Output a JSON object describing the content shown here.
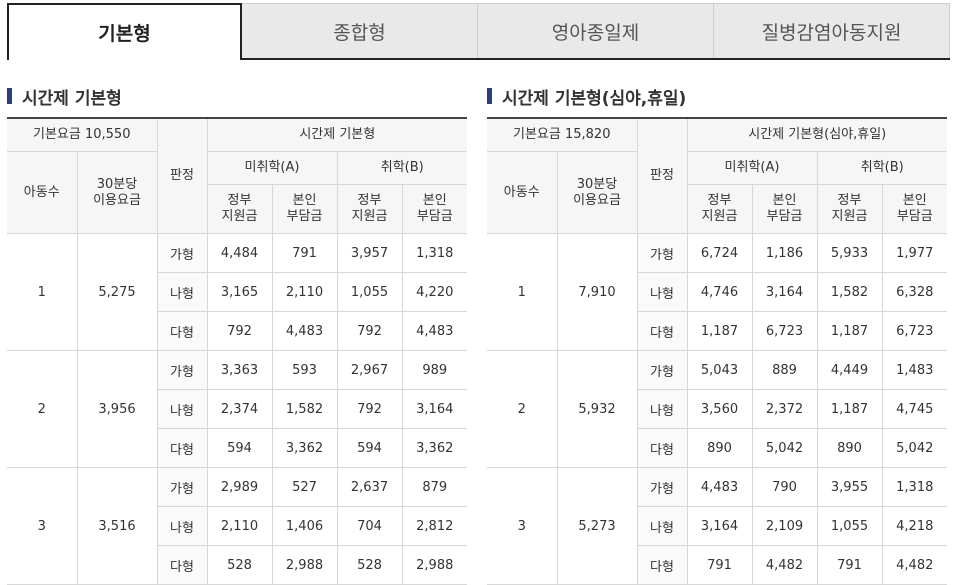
{
  "tabs": [
    "기본형",
    "종합형",
    "영아종일제",
    "질병감염아동지원"
  ],
  "active_tab": "기본형",
  "tables": [
    {
      "title": "시간제 기본형",
      "base_fee_label": "기본요금 10,550",
      "child_count_header": "아동수",
      "fee30_header": "30분당\n이용요금",
      "judge_header": "판정",
      "group_header": "시간제 기본형",
      "sub_a": "미취학(A)",
      "sub_b": "취학(B)",
      "gov_header": "정부\n지원금",
      "self_header": "본인\n부담금",
      "groups": [
        {
          "children": "1",
          "fee30": "5,275",
          "rows": [
            {
              "judge": "가형",
              "a_gov": "4,484",
              "a_self": "791",
              "b_gov": "3,957",
              "b_self": "1,318"
            },
            {
              "judge": "나형",
              "a_gov": "3,165",
              "a_self": "2,110",
              "b_gov": "1,055",
              "b_self": "4,220"
            },
            {
              "judge": "다형",
              "a_gov": "792",
              "a_self": "4,483",
              "b_gov": "792",
              "b_self": "4,483"
            }
          ]
        },
        {
          "children": "2",
          "fee30": "3,956",
          "rows": [
            {
              "judge": "가형",
              "a_gov": "3,363",
              "a_self": "593",
              "b_gov": "2,967",
              "b_self": "989"
            },
            {
              "judge": "나형",
              "a_gov": "2,374",
              "a_self": "1,582",
              "b_gov": "792",
              "b_self": "3,164"
            },
            {
              "judge": "다형",
              "a_gov": "594",
              "a_self": "3,362",
              "b_gov": "594",
              "b_self": "3,362"
            }
          ]
        },
        {
          "children": "3",
          "fee30": "3,516",
          "rows": [
            {
              "judge": "가형",
              "a_gov": "2,989",
              "a_self": "527",
              "b_gov": "2,637",
              "b_self": "879"
            },
            {
              "judge": "나형",
              "a_gov": "2,110",
              "a_self": "1,406",
              "b_gov": "704",
              "b_self": "2,812"
            },
            {
              "judge": "다형",
              "a_gov": "528",
              "a_self": "2,988",
              "b_gov": "528",
              "b_self": "2,988"
            }
          ]
        }
      ]
    },
    {
      "title": "시간제 기본형(심야,휴일)",
      "base_fee_label": "기본요금 15,820",
      "child_count_header": "아동수",
      "fee30_header": "30분당\n이용요금",
      "judge_header": "판정",
      "group_header": "시간제 기본형(심야,휴일)",
      "sub_a": "미취학(A)",
      "sub_b": "취학(B)",
      "gov_header": "정부\n지원금",
      "self_header": "본인\n부담금",
      "groups": [
        {
          "children": "1",
          "fee30": "7,910",
          "rows": [
            {
              "judge": "가형",
              "a_gov": "6,724",
              "a_self": "1,186",
              "b_gov": "5,933",
              "b_self": "1,977"
            },
            {
              "judge": "나형",
              "a_gov": "4,746",
              "a_self": "3,164",
              "b_gov": "1,582",
              "b_self": "6,328"
            },
            {
              "judge": "다형",
              "a_gov": "1,187",
              "a_self": "6,723",
              "b_gov": "1,187",
              "b_self": "6,723"
            }
          ]
        },
        {
          "children": "2",
          "fee30": "5,932",
          "rows": [
            {
              "judge": "가형",
              "a_gov": "5,043",
              "a_self": "889",
              "b_gov": "4,449",
              "b_self": "1,483"
            },
            {
              "judge": "나형",
              "a_gov": "3,560",
              "a_self": "2,372",
              "b_gov": "1,187",
              "b_self": "4,745"
            },
            {
              "judge": "다형",
              "a_gov": "890",
              "a_self": "5,042",
              "b_gov": "890",
              "b_self": "5,042"
            }
          ]
        },
        {
          "children": "3",
          "fee30": "5,273",
          "rows": [
            {
              "judge": "가형",
              "a_gov": "4,483",
              "a_self": "790",
              "b_gov": "3,955",
              "b_self": "1,318"
            },
            {
              "judge": "나형",
              "a_gov": "3,164",
              "a_self": "2,109",
              "b_gov": "1,055",
              "b_self": "4,218"
            },
            {
              "judge": "다형",
              "a_gov": "791",
              "a_self": "4,482",
              "b_gov": "791",
              "b_self": "4,482"
            }
          ]
        }
      ]
    }
  ]
}
